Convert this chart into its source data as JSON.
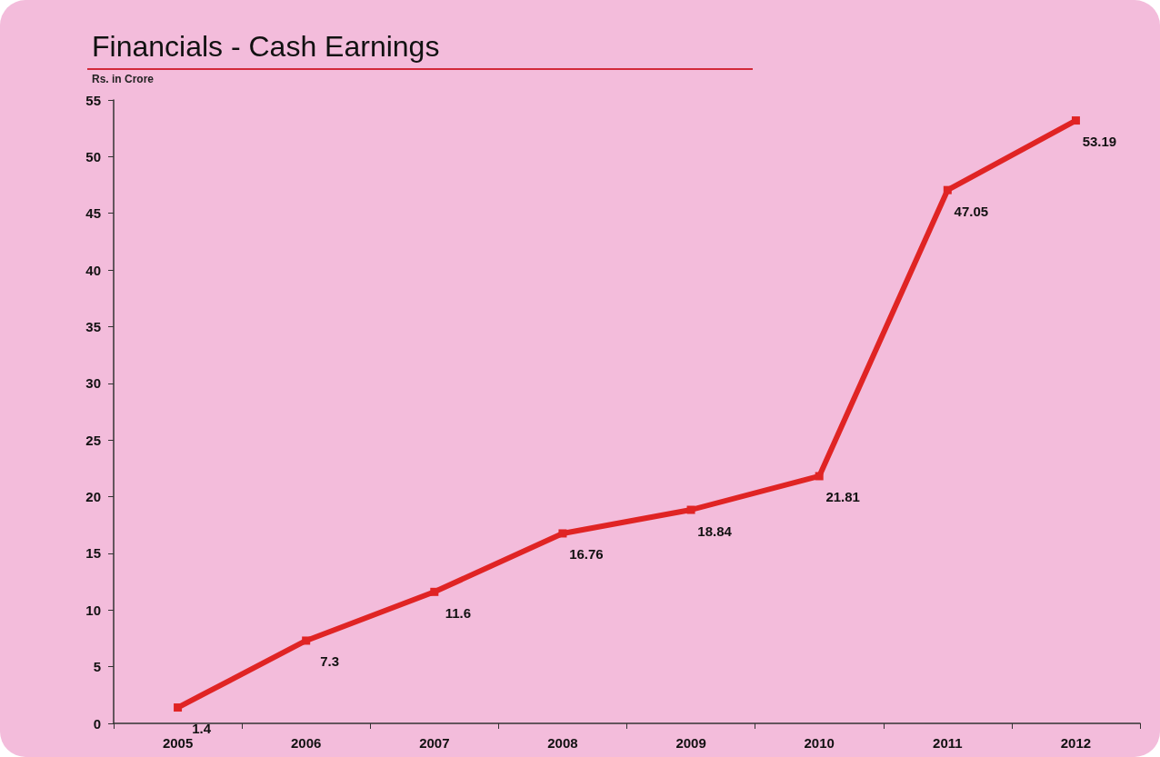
{
  "chart_data": {
    "type": "line",
    "title": "Financials - Cash Earnings",
    "subtitle": "Rs. in Crore",
    "categories": [
      "2005",
      "2006",
      "2007",
      "2008",
      "2009",
      "2010",
      "2011",
      "2012"
    ],
    "series": [
      {
        "color": "#e02424",
        "values": [
          1.4,
          7.3,
          11.6,
          16.76,
          18.84,
          21.81,
          47.05,
          53.19
        ]
      }
    ],
    "ylim": [
      0,
      55
    ],
    "yticks": [
      0,
      5,
      10,
      15,
      20,
      25,
      30,
      35,
      40,
      45,
      50,
      55
    ],
    "grid": false,
    "marker": "square",
    "line_style": "solid",
    "data_labels": true
  }
}
